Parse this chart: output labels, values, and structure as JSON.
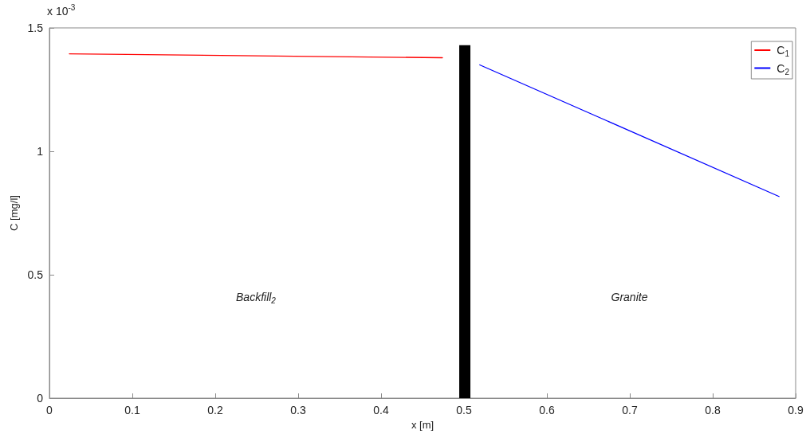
{
  "chart_data": {
    "type": "line",
    "xlabel": "x [m]",
    "ylabel": "C [mg/l]",
    "xlim": [
      0,
      0.9
    ],
    "xticks": [
      0,
      0.1,
      0.2,
      0.3,
      0.4,
      0.5,
      0.6,
      0.7,
      0.8,
      0.9
    ],
    "ylim": [
      0,
      1.5
    ],
    "yticks": [
      0,
      0.5,
      1,
      1.5
    ],
    "series": [
      {
        "name": "C$_{1}$",
        "color": "#ff0000",
        "x": [
          0.024,
          0.474
        ],
        "values": [
          1.395,
          1.379
        ]
      },
      {
        "name": "C$_{2}$",
        "color": "#0000ff",
        "x": [
          0.519,
          0.88
        ],
        "values": [
          1.35,
          0.817
        ]
      },
      {
        "type": "bar",
        "color": "#000000",
        "x": [
          0.501
        ],
        "values": [
          1.43
        ]
      }
    ],
    "annotations": [
      "x 10$^{-3}$",
      "Backfill$_{2}$",
      "Granite"
    ],
    "legend": "top right",
    "grid": false,
    "marker": "none",
    "line_style": "solid"
  }
}
